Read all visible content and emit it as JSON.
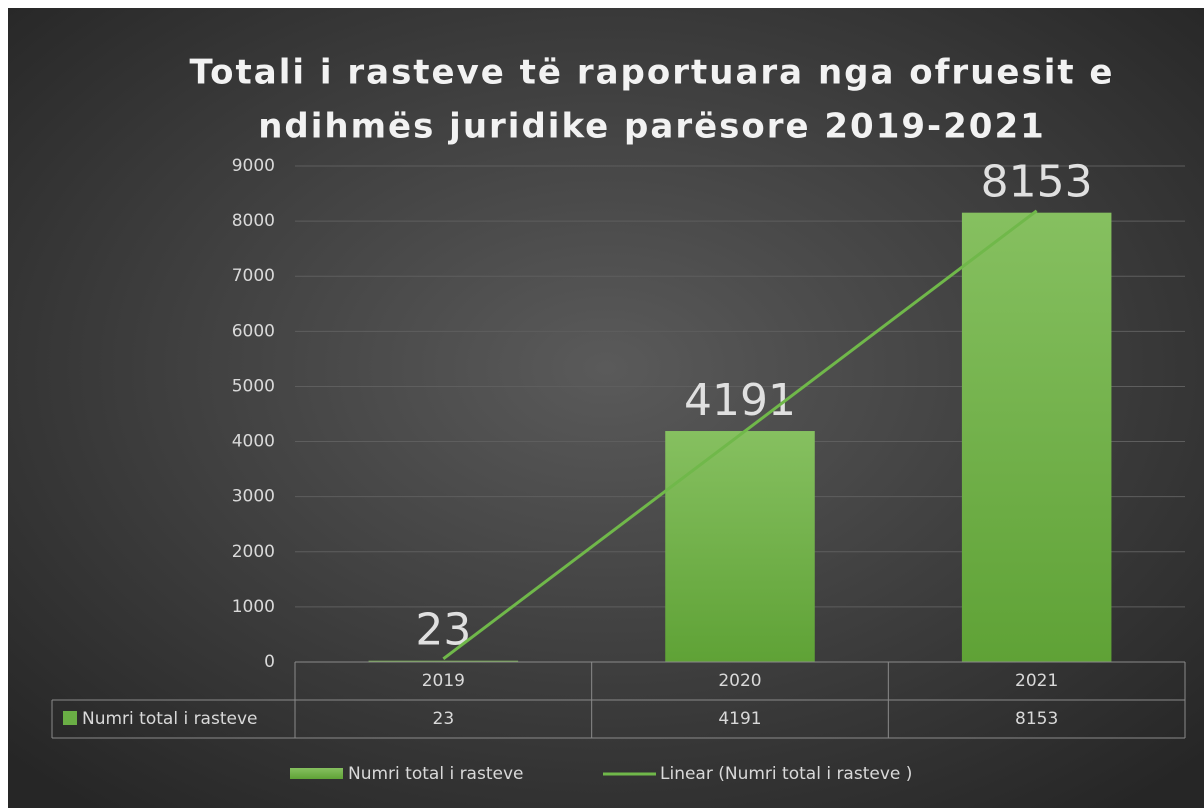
{
  "chart_data": {
    "type": "bar",
    "title": "Totali i rasteve të raportuara nga ofruesit e",
    "subtitle": "ndihmës juridike parësore 2019-2021",
    "categories": [
      "2019",
      "2020",
      "2021"
    ],
    "series": [
      {
        "name": "Numri total i rasteve",
        "color": "#6aae45",
        "values": [
          23,
          4191,
          8153
        ]
      }
    ],
    "trendline": {
      "name": "Linear (Numri total i rasteve )",
      "type": "linear",
      "color": "#70b84a"
    },
    "ylim": [
      0,
      9000
    ],
    "yticks": [
      0,
      1000,
      2000,
      3000,
      4000,
      5000,
      6000,
      7000,
      8000,
      9000
    ],
    "grid": true,
    "data_table": true,
    "legend": "bottom"
  }
}
